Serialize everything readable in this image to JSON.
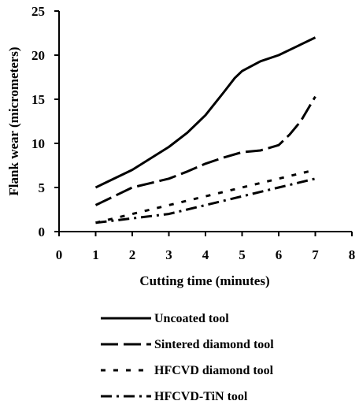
{
  "chart_data": {
    "type": "line",
    "title": "",
    "xlabel": "Cutting time (minutes)",
    "ylabel": "Flank wear (micrometers)",
    "xlim": [
      0,
      8
    ],
    "ylim": [
      0,
      25
    ],
    "x_ticks": [
      "0",
      "1",
      "2",
      "3",
      "4",
      "5",
      "6",
      "7",
      "8"
    ],
    "y_ticks": [
      "0",
      "5",
      "10",
      "15",
      "20",
      "25"
    ],
    "grid": false,
    "legend_position": "bottom",
    "series": [
      {
        "name": "Uncoated tool",
        "dash": "solid",
        "points": [
          [
            1,
            5
          ],
          [
            2,
            7
          ],
          [
            3,
            9.6
          ],
          [
            3.5,
            11.2
          ],
          [
            4,
            13.2
          ],
          [
            4.5,
            15.8
          ],
          [
            4.8,
            17.4
          ],
          [
            5,
            18.2
          ],
          [
            5.5,
            19.3
          ],
          [
            6,
            20
          ],
          [
            6.5,
            21
          ],
          [
            7,
            22
          ]
        ]
      },
      {
        "name": "Sintered diamond tool",
        "dash": "long-dash",
        "points": [
          [
            1,
            3
          ],
          [
            1.5,
            4
          ],
          [
            2,
            5
          ],
          [
            2.5,
            5.5
          ],
          [
            3,
            6
          ],
          [
            3.5,
            6.8
          ],
          [
            4,
            7.7
          ],
          [
            4.5,
            8.4
          ],
          [
            5,
            9
          ],
          [
            5.5,
            9.2
          ],
          [
            6,
            9.8
          ],
          [
            6.3,
            11
          ],
          [
            6.6,
            12.5
          ],
          [
            7,
            15.3
          ]
        ]
      },
      {
        "name": "HFCVD diamond tool",
        "dash": "short-dash",
        "points": [
          [
            1,
            1
          ],
          [
            2,
            2
          ],
          [
            3,
            3
          ],
          [
            4,
            4
          ],
          [
            5,
            5
          ],
          [
            6,
            6
          ],
          [
            7,
            7
          ]
        ]
      },
      {
        "name": "HFCVD-TiN tool",
        "dash": "dash-dot",
        "points": [
          [
            1,
            1
          ],
          [
            2,
            1.5
          ],
          [
            3,
            2
          ],
          [
            4,
            3
          ],
          [
            5,
            4
          ],
          [
            6,
            5
          ],
          [
            7,
            6
          ]
        ]
      }
    ]
  }
}
